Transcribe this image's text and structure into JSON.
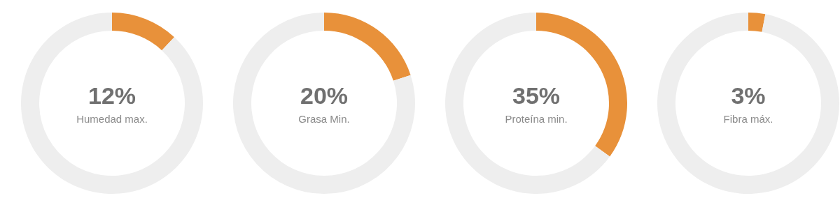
{
  "chart_data": [
    {
      "type": "donut",
      "categories": [
        "Humedad max.",
        null
      ],
      "values": [
        12,
        88
      ],
      "colors": [
        "#e8913a",
        "#eeeeee"
      ],
      "value_labels": [
        "12%",
        null
      ]
    },
    {
      "type": "donut",
      "categories": [
        "Grasa Min.",
        null
      ],
      "values": [
        20,
        80
      ],
      "colors": [
        "#e8913a",
        "#eeeeee"
      ],
      "value_labels": [
        "20%",
        null
      ]
    },
    {
      "type": "donut",
      "categories": [
        "Proteína min.",
        null
      ],
      "values": [
        35,
        65
      ],
      "colors": [
        "#e8913a",
        "#eeeeee"
      ],
      "value_labels": [
        "35%",
        null
      ]
    },
    {
      "type": "donut",
      "categories": [
        "Fibra máx.",
        null
      ],
      "values": [
        3,
        97
      ],
      "colors": [
        "#e8913a",
        "#eeeeee"
      ],
      "value_labels": [
        "3%",
        null
      ]
    }
  ]
}
